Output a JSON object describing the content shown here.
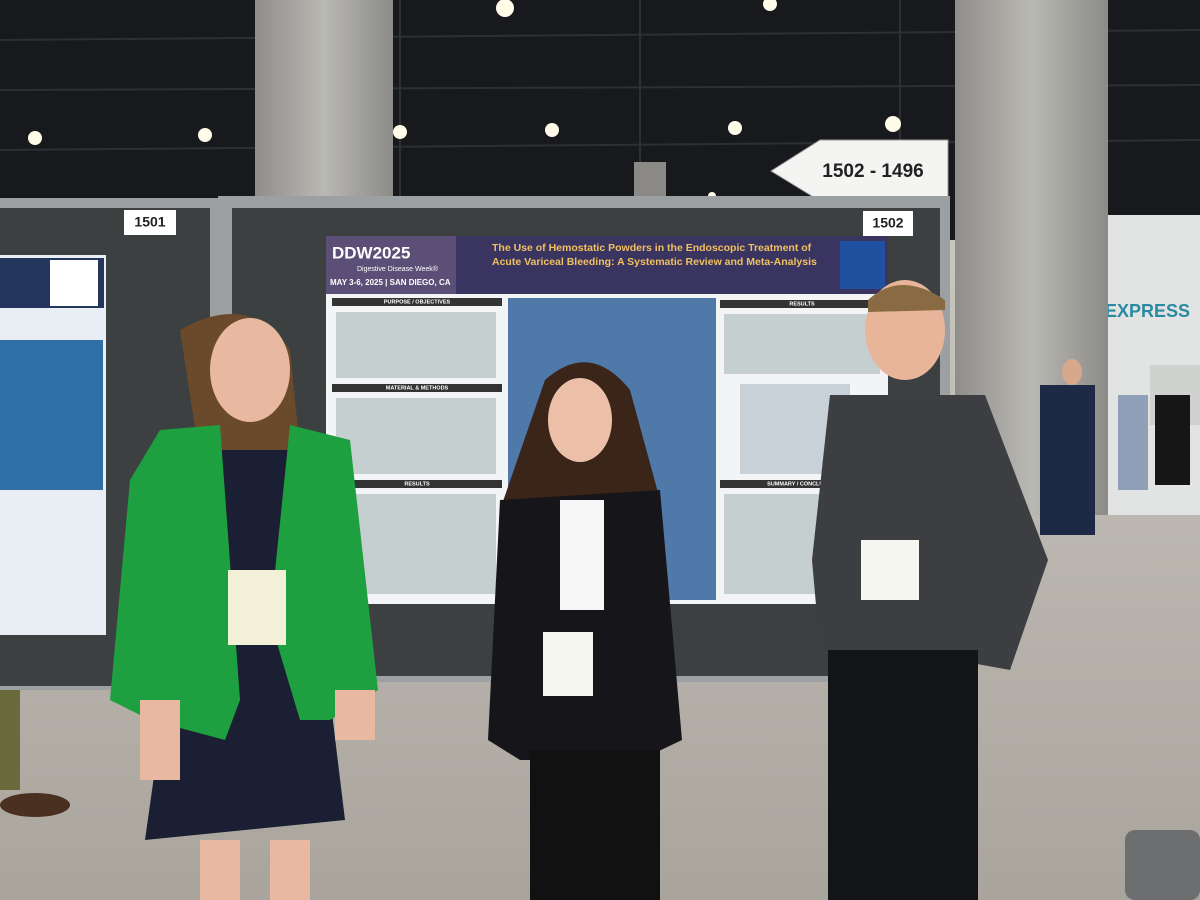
{
  "signs": {
    "booth_left": "1501",
    "booth_right": "1502",
    "direction": "1502 - 1496"
  },
  "poster": {
    "logo": "DDW2025",
    "logo_sub": "Digestive Disease Week®",
    "date": "MAY 3-6, 2025 | SAN DIEGO, CA",
    "title_lines": [
      "The Use of Hemostatic Powders in the Endoscopic Treatment of",
      "Acute Variceal Bleeding: A Systematic Review and Meta-Analysis"
    ],
    "sections": [
      "PURPOSE / OBJECTIVES",
      "MATERIAL & METHODS",
      "RESULTS",
      "RESULTS",
      "SUMMARY / CONCLUSION"
    ]
  },
  "venue_sign": "EXPRESS"
}
